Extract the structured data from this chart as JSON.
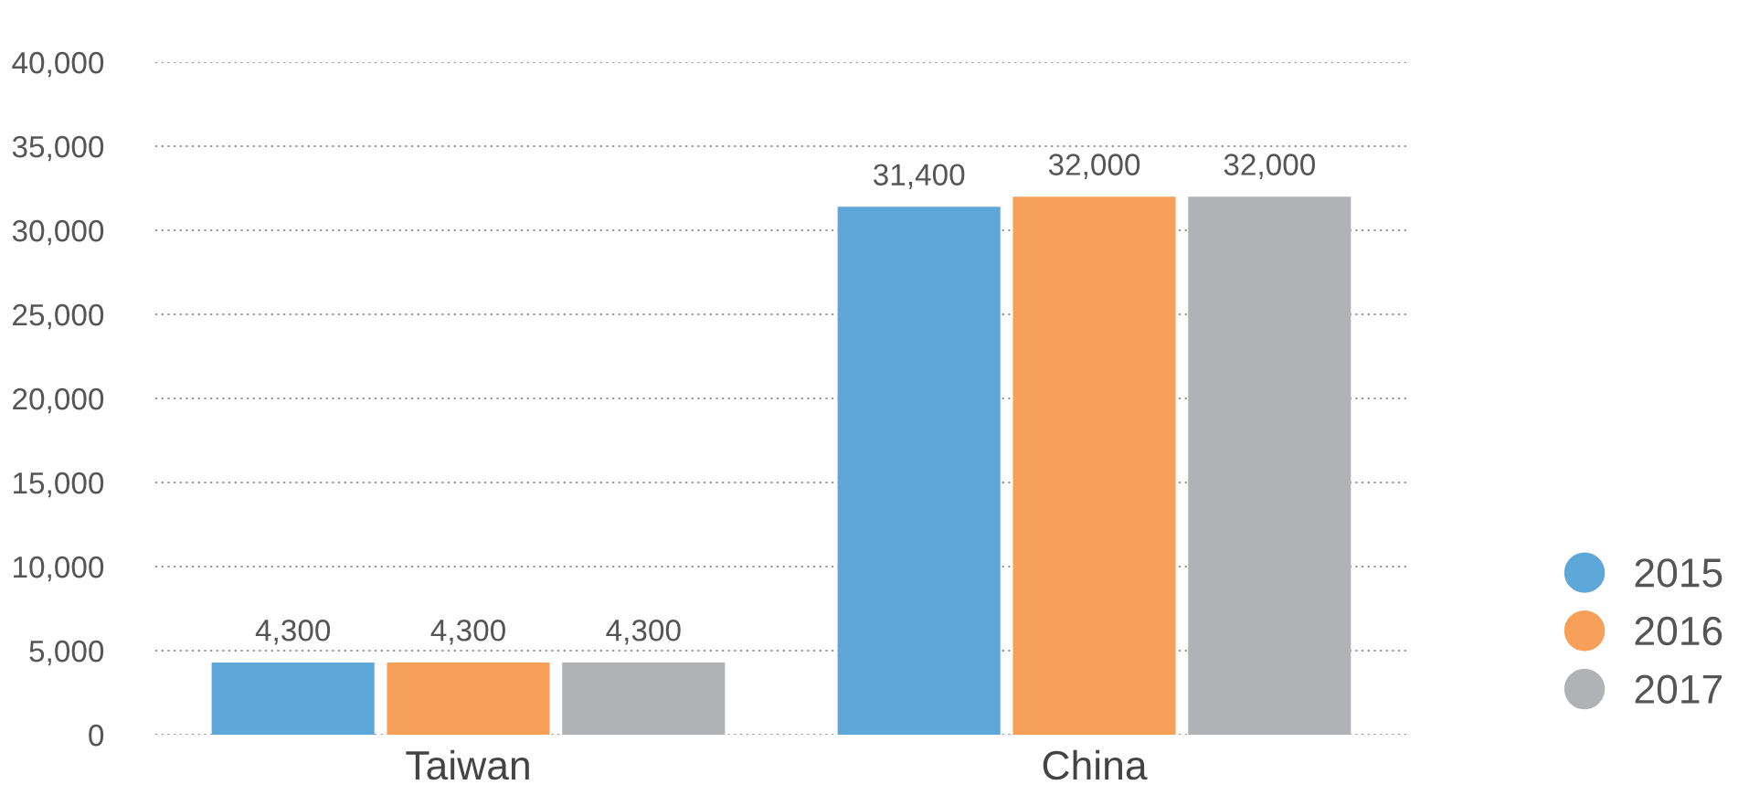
{
  "chart_data": {
    "type": "bar",
    "categories": [
      "Taiwan",
      "China"
    ],
    "series": [
      {
        "name": "2015",
        "color": "#5ea7d9",
        "values": [
          4300,
          31400
        ],
        "value_labels": [
          "4,300",
          "31,400"
        ]
      },
      {
        "name": "2016",
        "color": "#f6a05a",
        "values": [
          4300,
          32000
        ],
        "value_labels": [
          "4,300",
          "32,000"
        ]
      },
      {
        "name": "2017",
        "color": "#b1b2b6",
        "values": [
          4300,
          32000
        ],
        "value_labels": [
          "4,300",
          "32,000"
        ]
      }
    ],
    "ylim": [
      0,
      40000
    ],
    "yticks": [
      {
        "value": 0,
        "label": "0"
      },
      {
        "value": 5000,
        "label": "5,000"
      },
      {
        "value": 10000,
        "label": "10,000"
      },
      {
        "value": 15000,
        "label": "15,000"
      },
      {
        "value": 20000,
        "label": "20,000"
      },
      {
        "value": 25000,
        "label": "25,000"
      },
      {
        "value": 30000,
        "label": "30,000"
      },
      {
        "value": 35000,
        "label": "35,000"
      },
      {
        "value": 40000,
        "label": "40,000"
      }
    ],
    "grid": "y",
    "legend": "right"
  }
}
